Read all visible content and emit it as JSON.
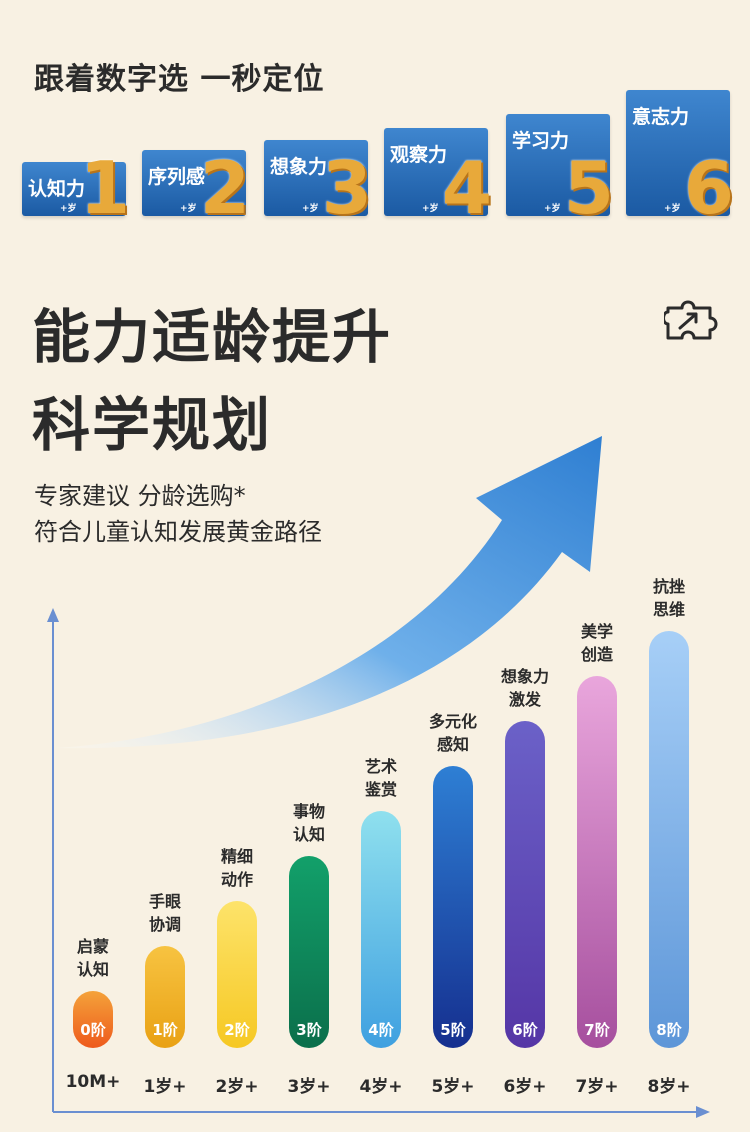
{
  "header": {
    "title": "跟着数字选 一秒定位"
  },
  "badges": [
    {
      "label": "认知力",
      "age": "+岁",
      "number": "1"
    },
    {
      "label": "序列感",
      "age": "+岁",
      "number": "2"
    },
    {
      "label": "想象力",
      "age": "+岁",
      "number": "3"
    },
    {
      "label": "观察力",
      "age": "+岁",
      "number": "4"
    },
    {
      "label": "学习力",
      "age": "+岁",
      "number": "5"
    },
    {
      "label": "意志力",
      "age": "+岁",
      "number": "6"
    }
  ],
  "headline": {
    "line1": "能力适龄提升",
    "line2": "科学规划"
  },
  "subtitle": {
    "line1": "专家建议 分龄选购*",
    "line2": "符合儿童认知发展黄金路径"
  },
  "icons": {
    "puzzle": "puzzle-icon",
    "arrow": "growth-arrow"
  },
  "stages": [
    {
      "label1": "启蒙",
      "label2": "认知",
      "stage": "0阶",
      "age": "10M+",
      "level": 1,
      "color_top": "#f4a23a",
      "color_bottom": "#ee5a1c"
    },
    {
      "label1": "手眼",
      "label2": "协调",
      "stage": "1阶",
      "age": "1岁+",
      "level": 2,
      "color_top": "#f7c341",
      "color_bottom": "#e9a114"
    },
    {
      "label1": "精细",
      "label2": "动作",
      "stage": "2阶",
      "age": "2岁+",
      "level": 3,
      "color_top": "#fde36a",
      "color_bottom": "#f6c823"
    },
    {
      "label1": "事物",
      "label2": "认知",
      "stage": "3阶",
      "age": "3岁+",
      "level": 4,
      "color_top": "#12a06a",
      "color_bottom": "#0b6f4b"
    },
    {
      "label1": "艺术",
      "label2": "鉴赏",
      "stage": "4阶",
      "age": "4岁+",
      "level": 5,
      "color_top": "#8fe0ee",
      "color_bottom": "#3fa0e0"
    },
    {
      "label1": "多元化",
      "label2": "感知",
      "stage": "5阶",
      "age": "5岁+",
      "level": 6,
      "color_top": "#2e7fd4",
      "color_bottom": "#152f8f"
    },
    {
      "label1": "想象力",
      "label2": "激发",
      "stage": "6阶",
      "age": "6岁+",
      "level": 7,
      "color_top": "#6b61c8",
      "color_bottom": "#5536a6"
    },
    {
      "label1": "美学",
      "label2": "创造",
      "stage": "7阶",
      "age": "7岁+",
      "level": 8,
      "color_top": "#e9a6dc",
      "color_bottom": "#a64f9e"
    },
    {
      "label1": "抗挫",
      "label2": "思维",
      "stage": "8阶",
      "age": "8岁+",
      "level": 9,
      "color_top": "#a7cff7",
      "color_bottom": "#5d96d8"
    }
  ]
}
